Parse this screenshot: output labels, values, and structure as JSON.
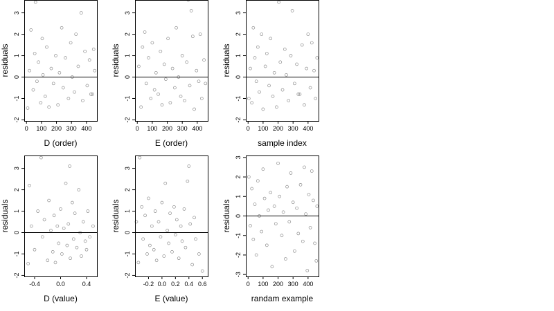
{
  "chart_data": [
    {
      "type": "scatter",
      "xlabel": "D (order)",
      "ylabel": "residuals",
      "xlim": [
        -15,
        470
      ],
      "ylim": [
        -2.05,
        3.6
      ],
      "xticks": [
        0,
        100,
        200,
        300,
        400
      ],
      "xtick_labels": [
        "0",
        "100",
        "200",
        "300",
        "400"
      ],
      "yticks": [
        -2,
        -1,
        0,
        1,
        2,
        3
      ],
      "ytick_labels": [
        "-2",
        "-1",
        "0",
        "1",
        "2",
        "3"
      ],
      "hline": 0,
      "points": [
        [
          8,
          -1.45
        ],
        [
          20,
          0.3
        ],
        [
          30,
          2.2
        ],
        [
          45,
          -0.6
        ],
        [
          55,
          1.1
        ],
        [
          60,
          3.5
        ],
        [
          70,
          -0.2
        ],
        [
          80,
          0.7
        ],
        [
          95,
          -1.2
        ],
        [
          105,
          1.8
        ],
        [
          110,
          0.1
        ],
        [
          125,
          -0.9
        ],
        [
          135,
          1.4
        ],
        [
          150,
          -1.4
        ],
        [
          165,
          0.4
        ],
        [
          180,
          -0.3
        ],
        [
          195,
          1.0
        ],
        [
          210,
          -1.3
        ],
        [
          220,
          0.2
        ],
        [
          235,
          2.3
        ],
        [
          245,
          -0.5
        ],
        [
          260,
          0.9
        ],
        [
          280,
          -1.0
        ],
        [
          295,
          1.6
        ],
        [
          305,
          0.0
        ],
        [
          320,
          -0.7
        ],
        [
          330,
          2.0
        ],
        [
          345,
          0.5
        ],
        [
          365,
          3.0
        ],
        [
          375,
          -1.1
        ],
        [
          390,
          1.2
        ],
        [
          405,
          -0.4
        ],
        [
          420,
          0.8
        ],
        [
          430,
          -0.8
        ],
        [
          440,
          -0.8
        ],
        [
          448,
          1.3
        ],
        [
          455,
          0.3
        ]
      ]
    },
    {
      "type": "scatter",
      "xlabel": "E (order)",
      "ylabel": "residuals",
      "xlim": [
        -15,
        470
      ],
      "ylim": [
        -2.05,
        3.6
      ],
      "xticks": [
        0,
        100,
        200,
        300,
        400
      ],
      "xtick_labels": [
        "0",
        "100",
        "200",
        "300",
        "400"
      ],
      "yticks": [
        -2,
        -1,
        0,
        1,
        2,
        3
      ],
      "ytick_labels": [
        "-2",
        "-1",
        "0",
        "1",
        "2",
        "3"
      ],
      "hline": 0,
      "points": [
        [
          10,
          0.5
        ],
        [
          25,
          -1.4
        ],
        [
          35,
          1.4
        ],
        [
          50,
          2.1
        ],
        [
          60,
          -0.3
        ],
        [
          75,
          0.9
        ],
        [
          90,
          -1.0
        ],
        [
          100,
          1.6
        ],
        [
          115,
          -0.6
        ],
        [
          125,
          0.2
        ],
        [
          140,
          -0.8
        ],
        [
          155,
          1.2
        ],
        [
          165,
          -1.3
        ],
        [
          180,
          0.6
        ],
        [
          190,
          -0.1
        ],
        [
          205,
          1.8
        ],
        [
          220,
          -1.2
        ],
        [
          235,
          0.4
        ],
        [
          250,
          -0.5
        ],
        [
          260,
          2.3
        ],
        [
          275,
          0.0
        ],
        [
          290,
          -0.9
        ],
        [
          300,
          1.0
        ],
        [
          315,
          -1.1
        ],
        [
          330,
          0.7
        ],
        [
          340,
          3.6
        ],
        [
          350,
          -0.4
        ],
        [
          360,
          3.1
        ],
        [
          370,
          1.9
        ],
        [
          380,
          -1.5
        ],
        [
          395,
          0.3
        ],
        [
          410,
          -0.2
        ],
        [
          420,
          2.0
        ],
        [
          430,
          -1.0
        ],
        [
          445,
          0.8
        ],
        [
          455,
          -0.3
        ]
      ]
    },
    {
      "type": "scatter",
      "xlabel": "sample index",
      "ylabel": "residuals",
      "xlim": [
        -15,
        470
      ],
      "ylim": [
        -2.05,
        3.6
      ],
      "xticks": [
        0,
        100,
        200,
        300,
        400
      ],
      "xtick_labels": [
        "0",
        "100",
        "200",
        "300",
        "400"
      ],
      "yticks": [
        -2,
        -1,
        0,
        1,
        2,
        3
      ],
      "ytick_labels": [
        "-2",
        "-1",
        "0",
        "1",
        "2",
        "3"
      ],
      "hline": 0,
      "points": [
        [
          5,
          -1.0
        ],
        [
          15,
          0.4
        ],
        [
          25,
          -1.2
        ],
        [
          35,
          2.3
        ],
        [
          45,
          0.9
        ],
        [
          55,
          -0.2
        ],
        [
          65,
          1.4
        ],
        [
          75,
          -0.7
        ],
        [
          90,
          2.0
        ],
        [
          100,
          -1.5
        ],
        [
          115,
          0.5
        ],
        [
          125,
          1.1
        ],
        [
          140,
          -0.4
        ],
        [
          150,
          1.8
        ],
        [
          165,
          -0.9
        ],
        [
          175,
          0.2
        ],
        [
          190,
          -1.4
        ],
        [
          205,
          3.5
        ],
        [
          215,
          0.7
        ],
        [
          230,
          -0.6
        ],
        [
          245,
          1.3
        ],
        [
          255,
          0.1
        ],
        [
          270,
          -1.1
        ],
        [
          285,
          1.0
        ],
        [
          295,
          3.1
        ],
        [
          310,
          -0.3
        ],
        [
          325,
          0.6
        ],
        [
          335,
          -0.8
        ],
        [
          345,
          -0.8
        ],
        [
          360,
          1.5
        ],
        [
          375,
          -1.3
        ],
        [
          390,
          0.4
        ],
        [
          400,
          2.0
        ],
        [
          415,
          -0.5
        ],
        [
          425,
          1.6
        ],
        [
          440,
          0.3
        ],
        [
          450,
          -1.0
        ],
        [
          460,
          0.9
        ]
      ]
    },
    {
      "type": "scatter",
      "xlabel": "D (value)",
      "ylabel": "residuals",
      "xlim": [
        -0.56,
        0.56
      ],
      "ylim": [
        -2.05,
        3.6
      ],
      "xticks": [
        -0.4,
        0.0,
        0.4
      ],
      "xtick_labels": [
        "-0.4",
        "0.0",
        "0.4"
      ],
      "yticks": [
        -2,
        -1,
        0,
        1,
        2,
        3
      ],
      "ytick_labels": [
        "-2",
        "-1",
        "0",
        "1",
        "2",
        "3"
      ],
      "hline": 0,
      "points": [
        [
          -0.5,
          -1.45
        ],
        [
          -0.48,
          2.2
        ],
        [
          -0.45,
          0.3
        ],
        [
          -0.4,
          -0.8
        ],
        [
          -0.35,
          1.0
        ],
        [
          -0.3,
          3.5
        ],
        [
          -0.28,
          -0.2
        ],
        [
          -0.25,
          0.6
        ],
        [
          -0.2,
          -1.3
        ],
        [
          -0.18,
          1.5
        ],
        [
          -0.15,
          0.1
        ],
        [
          -0.12,
          -0.9
        ],
        [
          -0.1,
          0.8
        ],
        [
          -0.08,
          -1.4
        ],
        [
          -0.05,
          0.3
        ],
        [
          -0.03,
          -0.5
        ],
        [
          0.0,
          1.1
        ],
        [
          0.02,
          -1.0
        ],
        [
          0.05,
          0.2
        ],
        [
          0.08,
          2.3
        ],
        [
          0.1,
          -0.6
        ],
        [
          0.12,
          0.4
        ],
        [
          0.14,
          3.1
        ],
        [
          0.15,
          -1.2
        ],
        [
          0.18,
          1.4
        ],
        [
          0.2,
          -0.3
        ],
        [
          0.22,
          0.9
        ],
        [
          0.25,
          -0.7
        ],
        [
          0.28,
          2.0
        ],
        [
          0.3,
          0.0
        ],
        [
          0.32,
          -1.1
        ],
        [
          0.35,
          0.5
        ],
        [
          0.38,
          -0.4
        ],
        [
          0.4,
          -0.8
        ],
        [
          0.42,
          1.0
        ],
        [
          0.45,
          -0.2
        ],
        [
          0.5,
          0.3
        ]
      ]
    },
    {
      "type": "scatter",
      "xlabel": "E (value)",
      "ylabel": "residuals",
      "xlim": [
        -0.4,
        0.68
      ],
      "ylim": [
        -2.05,
        3.6
      ],
      "xticks": [
        -0.2,
        0.0,
        0.2,
        0.4,
        0.6
      ],
      "xtick_labels": [
        "-0.2",
        "0.0",
        "0.2",
        "0.4",
        "0.6"
      ],
      "yticks": [
        -2,
        -1,
        0,
        1,
        2,
        3
      ],
      "ytick_labels": [
        "-2",
        "-1",
        "0",
        "1",
        "2",
        "3"
      ],
      "hline": 0,
      "points": [
        [
          -0.38,
          0.5
        ],
        [
          -0.35,
          -1.4
        ],
        [
          -0.33,
          3.5
        ],
        [
          -0.3,
          1.2
        ],
        [
          -0.28,
          -0.3
        ],
        [
          -0.25,
          0.8
        ],
        [
          -0.22,
          -1.0
        ],
        [
          -0.2,
          1.6
        ],
        [
          -0.18,
          -0.6
        ],
        [
          -0.15,
          0.3
        ],
        [
          -0.12,
          -0.8
        ],
        [
          -0.1,
          1.0
        ],
        [
          -0.08,
          -1.3
        ],
        [
          -0.05,
          0.5
        ],
        [
          -0.02,
          -0.2
        ],
        [
          0.0,
          1.4
        ],
        [
          0.03,
          -1.1
        ],
        [
          0.05,
          2.3
        ],
        [
          0.08,
          0.1
        ],
        [
          0.1,
          -0.5
        ],
        [
          0.12,
          0.9
        ],
        [
          0.15,
          -0.9
        ],
        [
          0.18,
          1.2
        ],
        [
          0.2,
          -0.1
        ],
        [
          0.22,
          0.6
        ],
        [
          0.25,
          -1.2
        ],
        [
          0.28,
          0.3
        ],
        [
          0.3,
          -0.4
        ],
        [
          0.33,
          1.1
        ],
        [
          0.35,
          -0.7
        ],
        [
          0.38,
          2.4
        ],
        [
          0.4,
          3.1
        ],
        [
          0.42,
          0.4
        ],
        [
          0.45,
          -1.5
        ],
        [
          0.48,
          0.7
        ],
        [
          0.5,
          -0.3
        ],
        [
          0.55,
          -1.0
        ],
        [
          0.6,
          -1.8
        ]
      ]
    },
    {
      "type": "scatter",
      "xlabel": "randam example",
      "ylabel": "residuals",
      "xlim": [
        -15,
        470
      ],
      "ylim": [
        -3.1,
        3.1
      ],
      "xticks": [
        0,
        100,
        200,
        300,
        400
      ],
      "xtick_labels": [
        "0",
        "100",
        "200",
        "300",
        "400"
      ],
      "yticks": [
        -3,
        -2,
        -1,
        0,
        1,
        2,
        3
      ],
      "ytick_labels": [
        "-3",
        "-2",
        "-1",
        "0",
        "1",
        "2",
        "3"
      ],
      "hline": 0,
      "points": [
        [
          5,
          2.0
        ],
        [
          15,
          -0.5
        ],
        [
          25,
          1.4
        ],
        [
          35,
          -1.2
        ],
        [
          45,
          0.6
        ],
        [
          55,
          -2.0
        ],
        [
          65,
          1.8
        ],
        [
          75,
          0.0
        ],
        [
          90,
          -0.8
        ],
        [
          100,
          2.4
        ],
        [
          110,
          0.9
        ],
        [
          125,
          -1.5
        ],
        [
          135,
          0.3
        ],
        [
          150,
          1.2
        ],
        [
          160,
          -2.6
        ],
        [
          175,
          0.5
        ],
        [
          185,
          -0.4
        ],
        [
          200,
          2.7
        ],
        [
          210,
          1.0
        ],
        [
          225,
          -1.0
        ],
        [
          235,
          0.2
        ],
        [
          250,
          -2.2
        ],
        [
          260,
          1.5
        ],
        [
          275,
          -0.3
        ],
        [
          285,
          2.2
        ],
        [
          300,
          0.7
        ],
        [
          310,
          -1.8
        ],
        [
          325,
          0.4
        ],
        [
          335,
          -0.9
        ],
        [
          350,
          1.6
        ],
        [
          365,
          -1.3
        ],
        [
          375,
          2.5
        ],
        [
          385,
          0.1
        ],
        [
          395,
          -2.8
        ],
        [
          405,
          1.1
        ],
        [
          415,
          -0.6
        ],
        [
          425,
          2.3
        ],
        [
          435,
          0.8
        ],
        [
          445,
          -1.4
        ],
        [
          455,
          -2.3
        ],
        [
          460,
          0.5
        ]
      ]
    }
  ]
}
